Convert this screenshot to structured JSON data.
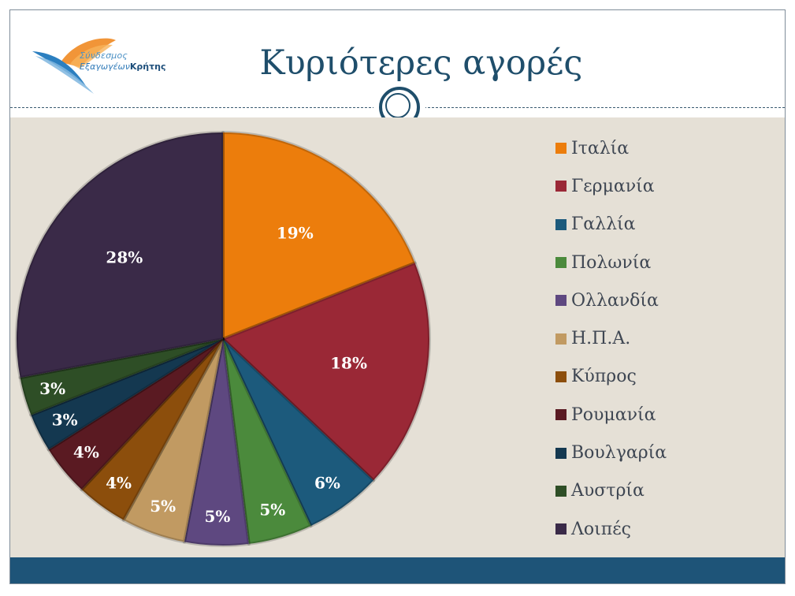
{
  "header": {
    "logo_line1": "Σύνδεσμος",
    "logo_line2_prefix": "Εξαγωγέων",
    "logo_line2_bold": "Κρήτης",
    "title": "Κυριότερες αγορές"
  },
  "chart_data": {
    "type": "pie",
    "title": "",
    "legend_position": "right",
    "categories": [
      "Ιταλία",
      "Γερμανία",
      "Γαλλία",
      "Πολωνία",
      "Ολλανδία",
      "Η.Π.Α.",
      "Κύπρος",
      "Ρουμανία",
      "Βουλγαρία",
      "Αυστρία",
      "Λοιπές"
    ],
    "values": [
      19,
      18,
      6,
      5,
      5,
      5,
      4,
      4,
      3,
      3,
      28
    ],
    "labels": [
      "19%",
      "18%",
      "6%",
      "5%",
      "5%",
      "5%",
      "4%",
      "4%",
      "3%",
      "3%",
      "28%"
    ],
    "colors": [
      "#ec7d0c",
      "#9a2836",
      "#1c5a7c",
      "#4b8a3c",
      "#5e4880",
      "#c19a62",
      "#8c4e0c",
      "#5a1a22",
      "#143850",
      "#2e4e26",
      "#3a2a48"
    ]
  }
}
